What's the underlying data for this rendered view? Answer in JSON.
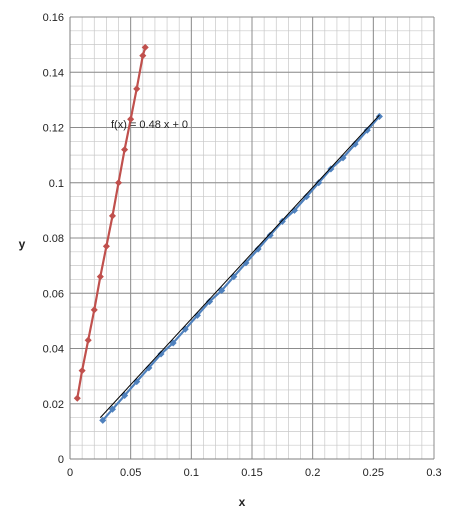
{
  "chart_data": {
    "type": "scatter",
    "xlabel": "x",
    "ylabel": "y",
    "xlim": [
      0,
      0.3
    ],
    "ylim": [
      0,
      0.16
    ],
    "x_ticks": [
      "0",
      "0.05",
      "0.1",
      "0.15",
      "0.2",
      "0.25",
      "0.3"
    ],
    "y_ticks": [
      "0",
      "0.02",
      "0.04",
      "0.06",
      "0.08",
      "0.1",
      "0.12",
      "0.14",
      "0.16"
    ],
    "grid": true,
    "annotation": "f(x) = 0.48 x + 0",
    "series": [
      {
        "color": "#c0504d",
        "style": "line-with-markers",
        "x": [
          0.006,
          0.01,
          0.015,
          0.02,
          0.025,
          0.03,
          0.035,
          0.04,
          0.045,
          0.05,
          0.055,
          0.06,
          0.062
        ],
        "y": [
          0.022,
          0.032,
          0.043,
          0.054,
          0.066,
          0.077,
          0.088,
          0.1,
          0.112,
          0.123,
          0.134,
          0.146,
          0.149
        ]
      },
      {
        "color": "#4f81bd",
        "style": "line-with-markers",
        "x": [
          0.027,
          0.035,
          0.045,
          0.055,
          0.065,
          0.075,
          0.085,
          0.095,
          0.105,
          0.115,
          0.125,
          0.135,
          0.145,
          0.155,
          0.165,
          0.175,
          0.185,
          0.195,
          0.205,
          0.215,
          0.225,
          0.235,
          0.245,
          0.255
        ],
        "y": [
          0.014,
          0.018,
          0.023,
          0.028,
          0.033,
          0.038,
          0.042,
          0.047,
          0.052,
          0.057,
          0.061,
          0.066,
          0.071,
          0.076,
          0.081,
          0.086,
          0.09,
          0.095,
          0.1,
          0.105,
          0.109,
          0.114,
          0.119,
          0.124
        ]
      },
      {
        "color": "#000000",
        "style": "trendline",
        "x": [
          0.025,
          0.255
        ],
        "y": [
          0.015,
          0.1245
        ]
      }
    ]
  }
}
